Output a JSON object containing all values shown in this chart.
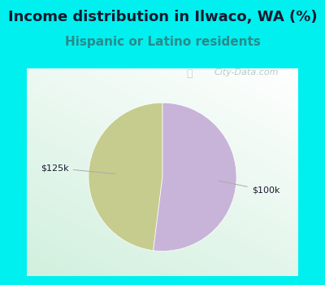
{
  "title": "Income distribution in Ilwaco, WA (%)",
  "subtitle": "Hispanic or Latino residents",
  "slices": [
    0.48,
    0.52
  ],
  "labels": [
    "$125k",
    "$100k"
  ],
  "colors": [
    "#c5cc8e",
    "#c8b4d8"
  ],
  "bg_top": "#00f0f0",
  "title_color": "#1a1a2e",
  "subtitle_color": "#2a8a8a",
  "label_color": "#1a1a2e",
  "watermark": "City-Data.com",
  "watermark_color": "#b0bfc0",
  "startangle": 90,
  "title_fontsize": 13,
  "subtitle_fontsize": 11,
  "label_fontsize": 8
}
